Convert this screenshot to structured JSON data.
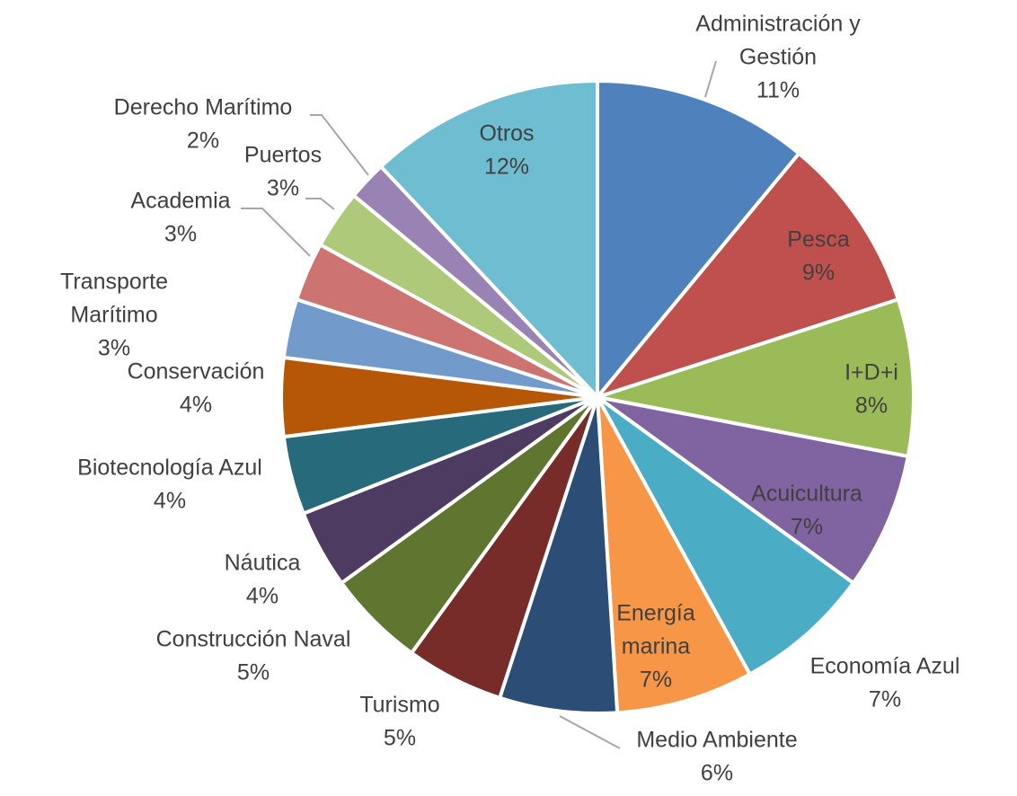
{
  "chart_data": {
    "type": "pie",
    "title": "",
    "series": [
      {
        "values": [
          11,
          9,
          8,
          7,
          7,
          7,
          6,
          5,
          5,
          4,
          4,
          4,
          3,
          3,
          3,
          2,
          12
        ]
      }
    ],
    "categories": [
      {
        "name": "Administración y Gestión",
        "lines": [
          "Administración y",
          "Gestión"
        ],
        "pct": "11%",
        "value": 11,
        "color": "#4f81bd"
      },
      {
        "name": "Pesca",
        "lines": [
          "Pesca"
        ],
        "pct": "9%",
        "value": 9,
        "color": "#c0504d"
      },
      {
        "name": "I+D+i",
        "lines": [
          "I+D+i"
        ],
        "pct": "8%",
        "value": 8,
        "color": "#9bbb59"
      },
      {
        "name": "Acuicultura",
        "lines": [
          "Acuicultura"
        ],
        "pct": "7%",
        "value": 7,
        "color": "#8064a2"
      },
      {
        "name": "Economía Azul",
        "lines": [
          "Economía Azul"
        ],
        "pct": "7%",
        "value": 7,
        "color": "#4bacc6"
      },
      {
        "name": "Energía marina",
        "lines": [
          "Energía",
          "marina"
        ],
        "pct": "7%",
        "value": 7,
        "color": "#f79646"
      },
      {
        "name": "Medio Ambiente",
        "lines": [
          "Medio Ambiente"
        ],
        "pct": "6%",
        "value": 6,
        "color": "#2c4d75"
      },
      {
        "name": "Turismo",
        "lines": [
          "Turismo"
        ],
        "pct": "5%",
        "value": 5,
        "color": "#772c2a"
      },
      {
        "name": "Construcción Naval",
        "lines": [
          "Construcción Naval"
        ],
        "pct": "5%",
        "value": 5,
        "color": "#5f7530"
      },
      {
        "name": "Náutica",
        "lines": [
          "Náutica"
        ],
        "pct": "4%",
        "value": 4,
        "color": "#4d3b62"
      },
      {
        "name": "Biotecnología Azul",
        "lines": [
          "Biotecnología Azul"
        ],
        "pct": "4%",
        "value": 4,
        "color": "#276a7c"
      },
      {
        "name": "Conservación",
        "lines": [
          "Conservación"
        ],
        "pct": "4%",
        "value": 4,
        "color": "#b65708"
      },
      {
        "name": "Transporte Marítimo",
        "lines": [
          "Transporte",
          "Marítimo"
        ],
        "pct": "3%",
        "value": 3,
        "color": "#729aca"
      },
      {
        "name": "Academia",
        "lines": [
          "Academia"
        ],
        "pct": "3%",
        "value": 3,
        "color": "#cd7371"
      },
      {
        "name": "Puertos",
        "lines": [
          "Puertos"
        ],
        "pct": "3%",
        "value": 3,
        "color": "#afc97a"
      },
      {
        "name": "Derecho Marítimo",
        "lines": [
          "Derecho Marítimo"
        ],
        "pct": "2%",
        "value": 2,
        "color": "#9983b5"
      },
      {
        "name": "Otros",
        "lines": [
          "Otros"
        ],
        "pct": "12%",
        "value": 12,
        "color": "#6fbdd1"
      }
    ],
    "legend": "none",
    "data_labels": "category and percentage"
  }
}
